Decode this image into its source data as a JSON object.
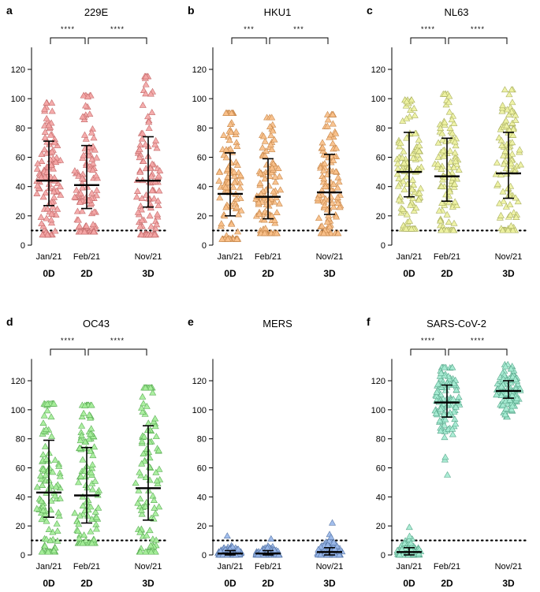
{
  "chart_data": [
    {
      "panel": "a",
      "type": "scatter",
      "title": "229E",
      "categories": [
        "Jan/21",
        "Feb/21",
        "Nov/21"
      ],
      "groups": [
        "0D",
        "2D",
        "3D"
      ],
      "ylim": [
        0,
        135
      ],
      "yticks": [
        0,
        20,
        40,
        60,
        80,
        100,
        120
      ],
      "threshold": 10,
      "color": "#f4a6a6",
      "edge": "#c46a6a",
      "series": [
        {
          "category": "Jan/21",
          "median": 44,
          "iqr": [
            27,
            71
          ],
          "min": 7,
          "max": 97
        },
        {
          "category": "Feb/21",
          "median": 41,
          "iqr": [
            25,
            68
          ],
          "min": 9,
          "max": 102
        },
        {
          "category": "Nov/21",
          "median": 44,
          "iqr": [
            26,
            74
          ],
          "min": 7,
          "max": 115
        }
      ],
      "significance": [
        {
          "from": "Jan/21",
          "to": "Feb/21",
          "label": "****"
        },
        {
          "from": "Feb/21",
          "to": "Nov/21",
          "label": "****"
        }
      ]
    },
    {
      "panel": "b",
      "type": "scatter",
      "title": "HKU1",
      "categories": [
        "Jan/21",
        "Feb/21",
        "Nov/21"
      ],
      "groups": [
        "0D",
        "2D",
        "3D"
      ],
      "ylim": [
        0,
        135
      ],
      "yticks": [
        0,
        20,
        40,
        60,
        80,
        100,
        120
      ],
      "threshold": 10,
      "color": "#f8c08a",
      "edge": "#c8874a",
      "series": [
        {
          "category": "Jan/21",
          "median": 35,
          "iqr": [
            20,
            63
          ],
          "min": 4,
          "max": 90
        },
        {
          "category": "Feb/21",
          "median": 33,
          "iqr": [
            18,
            59
          ],
          "min": 8,
          "max": 87
        },
        {
          "category": "Nov/21",
          "median": 36,
          "iqr": [
            21,
            62
          ],
          "min": 8,
          "max": 89
        }
      ],
      "significance": [
        {
          "from": "Jan/21",
          "to": "Feb/21",
          "label": "***"
        },
        {
          "from": "Feb/21",
          "to": "Nov/21",
          "label": "***"
        }
      ]
    },
    {
      "panel": "c",
      "type": "scatter",
      "title": "NL63",
      "categories": [
        "Jan/21",
        "Feb/21",
        "Nov/21"
      ],
      "groups": [
        "0D",
        "2D",
        "3D"
      ],
      "ylim": [
        0,
        135
      ],
      "yticks": [
        0,
        20,
        40,
        60,
        80,
        100,
        120
      ],
      "threshold": 10,
      "color": "#eef2a2",
      "edge": "#aab060",
      "series": [
        {
          "category": "Jan/21",
          "median": 50,
          "iqr": [
            33,
            77
          ],
          "min": 11,
          "max": 99
        },
        {
          "category": "Feb/21",
          "median": 47,
          "iqr": [
            30,
            73
          ],
          "min": 10,
          "max": 103
        },
        {
          "category": "Nov/21",
          "median": 49,
          "iqr": [
            32,
            77
          ],
          "min": 10,
          "max": 106
        }
      ],
      "significance": [
        {
          "from": "Jan/21",
          "to": "Feb/21",
          "label": "****"
        },
        {
          "from": "Feb/21",
          "to": "Nov/21",
          "label": "****"
        }
      ]
    },
    {
      "panel": "d",
      "type": "scatter",
      "title": "OC43",
      "categories": [
        "Jan/21",
        "Feb/21",
        "Nov/21"
      ],
      "groups": [
        "0D",
        "2D",
        "3D"
      ],
      "ylim": [
        0,
        135
      ],
      "yticks": [
        0,
        20,
        40,
        60,
        80,
        100,
        120
      ],
      "threshold": 10,
      "color": "#a6ee9a",
      "edge": "#5cae56",
      "series": [
        {
          "category": "Jan/21",
          "median": 43,
          "iqr": [
            26,
            79
          ],
          "min": 2,
          "max": 104
        },
        {
          "category": "Feb/21",
          "median": 41,
          "iqr": [
            22,
            74
          ],
          "min": 8,
          "max": 103
        },
        {
          "category": "Nov/21",
          "median": 46,
          "iqr": [
            24,
            89
          ],
          "min": 2,
          "max": 115
        }
      ],
      "significance": [
        {
          "from": "Jan/21",
          "to": "Feb/21",
          "label": "****"
        },
        {
          "from": "Feb/21",
          "to": "Nov/21",
          "label": "****"
        }
      ]
    },
    {
      "panel": "e",
      "type": "scatter",
      "title": "MERS",
      "categories": [
        "Jan/21",
        "Feb/21",
        "Nov/21"
      ],
      "groups": [
        "0D",
        "2D",
        "3D"
      ],
      "ylim": [
        0,
        135
      ],
      "yticks": [
        0,
        20,
        40,
        60,
        80,
        100,
        120
      ],
      "threshold": 10,
      "color": "#9ab8ea",
      "edge": "#5a78a8",
      "series": [
        {
          "category": "Jan/21",
          "median": 1,
          "iqr": [
            0,
            3
          ],
          "min": 0,
          "max": 13
        },
        {
          "category": "Feb/21",
          "median": 1,
          "iqr": [
            0,
            3
          ],
          "min": 0,
          "max": 11
        },
        {
          "category": "Nov/21",
          "median": 2,
          "iqr": [
            0,
            5
          ],
          "min": 0,
          "max": 22
        }
      ],
      "significance": []
    },
    {
      "panel": "f",
      "type": "scatter",
      "title": "SARS-CoV-2",
      "categories": [
        "Jan/21",
        "Feb/21",
        "Nov/21"
      ],
      "groups": [
        "0D",
        "2D",
        "3D"
      ],
      "ylim": [
        0,
        135
      ],
      "yticks": [
        0,
        20,
        40,
        60,
        80,
        100,
        120
      ],
      "threshold": 10,
      "color": "#a6ecd2",
      "edge": "#5aa88c",
      "series": [
        {
          "category": "Jan/21",
          "median": 2,
          "iqr": [
            0,
            5
          ],
          "min": 0,
          "max": 19
        },
        {
          "category": "Feb/21",
          "median": 105,
          "iqr": [
            95,
            117
          ],
          "min": 55,
          "max": 129
        },
        {
          "category": "Nov/21",
          "median": 113,
          "iqr": [
            108,
            120
          ],
          "min": 95,
          "max": 131
        }
      ],
      "significance": [
        {
          "from": "Jan/21",
          "to": "Feb/21",
          "label": "****"
        },
        {
          "from": "Feb/21",
          "to": "Nov/21",
          "label": "****"
        }
      ]
    }
  ]
}
